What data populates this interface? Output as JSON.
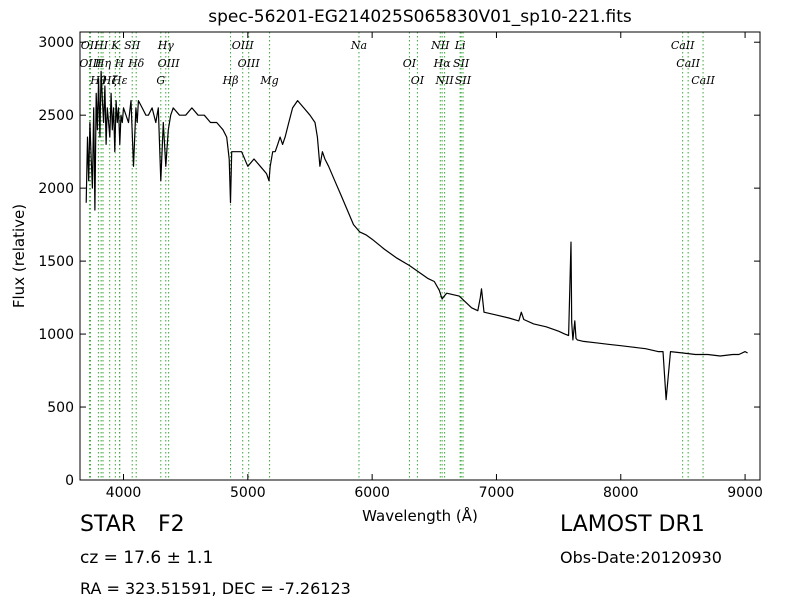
{
  "chart_data": {
    "type": "line",
    "title": "spec-56201-EG214025S065830V01_sp10-221.fits",
    "xlabel": "Wavelength (Å)",
    "ylabel": "Flux (relative)",
    "xlim": [
      3650,
      9120
    ],
    "ylim": [
      0,
      3070
    ],
    "xticks": [
      4000,
      5000,
      6000,
      7000,
      8000,
      9000
    ],
    "yticks": [
      0,
      500,
      1000,
      1500,
      2000,
      2500,
      3000
    ],
    "grid": false,
    "line_color": "#000000",
    "line_marker_color": "#3aa63a",
    "series": [
      {
        "x": [
          3700,
          3710,
          3720,
          3730,
          3740,
          3750,
          3760,
          3770,
          3780,
          3790,
          3800,
          3810,
          3820,
          3830,
          3840,
          3850,
          3860,
          3870,
          3880,
          3890,
          3900,
          3910,
          3920,
          3930,
          3940,
          3950,
          3960,
          3970,
          3980,
          3990,
          4000,
          4020,
          4040,
          4060,
          4080,
          4100,
          4110,
          4120,
          4150,
          4180,
          4200,
          4230,
          4260,
          4280,
          4300,
          4320,
          4340,
          4360,
          4380,
          4400,
          4450,
          4500,
          4550,
          4600,
          4650,
          4700,
          4750,
          4800,
          4830,
          4850,
          4861,
          4870,
          4900,
          4950,
          5000,
          5050,
          5100,
          5150,
          5170,
          5180,
          5200,
          5220,
          5240,
          5260,
          5280,
          5300,
          5330,
          5360,
          5400,
          5450,
          5500,
          5540,
          5560,
          5580,
          5600,
          5620,
          5650,
          5700,
          5750,
          5800,
          5850,
          5900,
          5950,
          6000,
          6100,
          6200,
          6300,
          6400,
          6450,
          6500,
          6540,
          6563,
          6580,
          6600,
          6700,
          6800,
          6850,
          6870,
          6880,
          6900,
          7000,
          7100,
          7180,
          7200,
          7220,
          7300,
          7400,
          7500,
          7550,
          7580,
          7600,
          7605,
          7615,
          7630,
          7640,
          7650,
          7700,
          7800,
          7900,
          8000,
          8100,
          8200,
          8300,
          8340,
          8355,
          8365,
          8400,
          8500,
          8600,
          8700,
          8800,
          8900,
          8950,
          9000,
          9020
        ],
        "y": [
          1900,
          2350,
          2050,
          2450,
          2200,
          2000,
          2550,
          1850,
          2650,
          2400,
          2750,
          2350,
          2800,
          2600,
          2450,
          2700,
          2300,
          2550,
          2450,
          2350,
          2650,
          2400,
          2550,
          2250,
          2600,
          2450,
          2550,
          2300,
          2500,
          2450,
          2550,
          2500,
          2450,
          2600,
          2150,
          2550,
          2450,
          2600,
          2550,
          2500,
          2500,
          2550,
          2450,
          2550,
          2050,
          2450,
          2150,
          2400,
          2500,
          2550,
          2500,
          2500,
          2550,
          2500,
          2500,
          2450,
          2450,
          2400,
          2350,
          2200,
          1900,
          2250,
          2250,
          2250,
          2150,
          2200,
          2150,
          2100,
          2050,
          2150,
          2250,
          2250,
          2300,
          2350,
          2300,
          2350,
          2450,
          2550,
          2600,
          2550,
          2500,
          2450,
          2350,
          2150,
          2250,
          2200,
          2150,
          2050,
          1950,
          1850,
          1750,
          1700,
          1680,
          1650,
          1580,
          1520,
          1470,
          1410,
          1380,
          1360,
          1300,
          1240,
          1260,
          1280,
          1260,
          1180,
          1160,
          1250,
          1310,
          1150,
          1130,
          1110,
          1090,
          1150,
          1100,
          1070,
          1050,
          1020,
          1000,
          990,
          1630,
          1080,
          960,
          1090,
          970,
          960,
          950,
          940,
          930,
          920,
          910,
          900,
          880,
          880,
          680,
          550,
          880,
          870,
          860,
          860,
          850,
          860,
          860,
          880,
          870
        ]
      }
    ],
    "line_markers": [
      {
        "wavelength": 3727,
        "label": "OII"
      },
      {
        "wavelength": 3734,
        "label": "OIII"
      },
      {
        "wavelength": 3798,
        "label": "Hθ"
      },
      {
        "wavelength": 3820,
        "label": "HI"
      },
      {
        "wavelength": 3835,
        "label": "Hη"
      },
      {
        "wavelength": 3889,
        "label": "Hζ"
      },
      {
        "wavelength": 3934,
        "label": "K"
      },
      {
        "wavelength": 3968,
        "label": "H"
      },
      {
        "wavelength": 3970,
        "label": "Hε"
      },
      {
        "wavelength": 4070,
        "label": "SII"
      },
      {
        "wavelength": 4102,
        "label": "Hδ"
      },
      {
        "wavelength": 4300,
        "label": "G"
      },
      {
        "wavelength": 4340,
        "label": "Hγ"
      },
      {
        "wavelength": 4363,
        "label": "OIII"
      },
      {
        "wavelength": 4861,
        "label": "Hβ"
      },
      {
        "wavelength": 4959,
        "label": "OIII"
      },
      {
        "wavelength": 5007,
        "label": "OIII"
      },
      {
        "wavelength": 5175,
        "label": "Mg"
      },
      {
        "wavelength": 5894,
        "label": "Na"
      },
      {
        "wavelength": 6300,
        "label": "OI"
      },
      {
        "wavelength": 6364,
        "label": "OI"
      },
      {
        "wavelength": 6548,
        "label": "NII"
      },
      {
        "wavelength": 6563,
        "label": "Hα"
      },
      {
        "wavelength": 6583,
        "label": "NII"
      },
      {
        "wavelength": 6708,
        "label": "Li"
      },
      {
        "wavelength": 6716,
        "label": "SII"
      },
      {
        "wavelength": 6731,
        "label": "SII"
      },
      {
        "wavelength": 8498,
        "label": "CaII"
      },
      {
        "wavelength": 8542,
        "label": "CaII"
      },
      {
        "wavelength": 8662,
        "label": "CaII"
      }
    ]
  },
  "info": {
    "object_class": "STAR",
    "subclass": "F2",
    "cz_text": "cz = 17.6  ± 1.1",
    "radec_text": "RA = 323.51591, DEC = -7.26123",
    "survey": "LAMOST DR1",
    "obs_date_text": "Obs-Date:20120930"
  }
}
